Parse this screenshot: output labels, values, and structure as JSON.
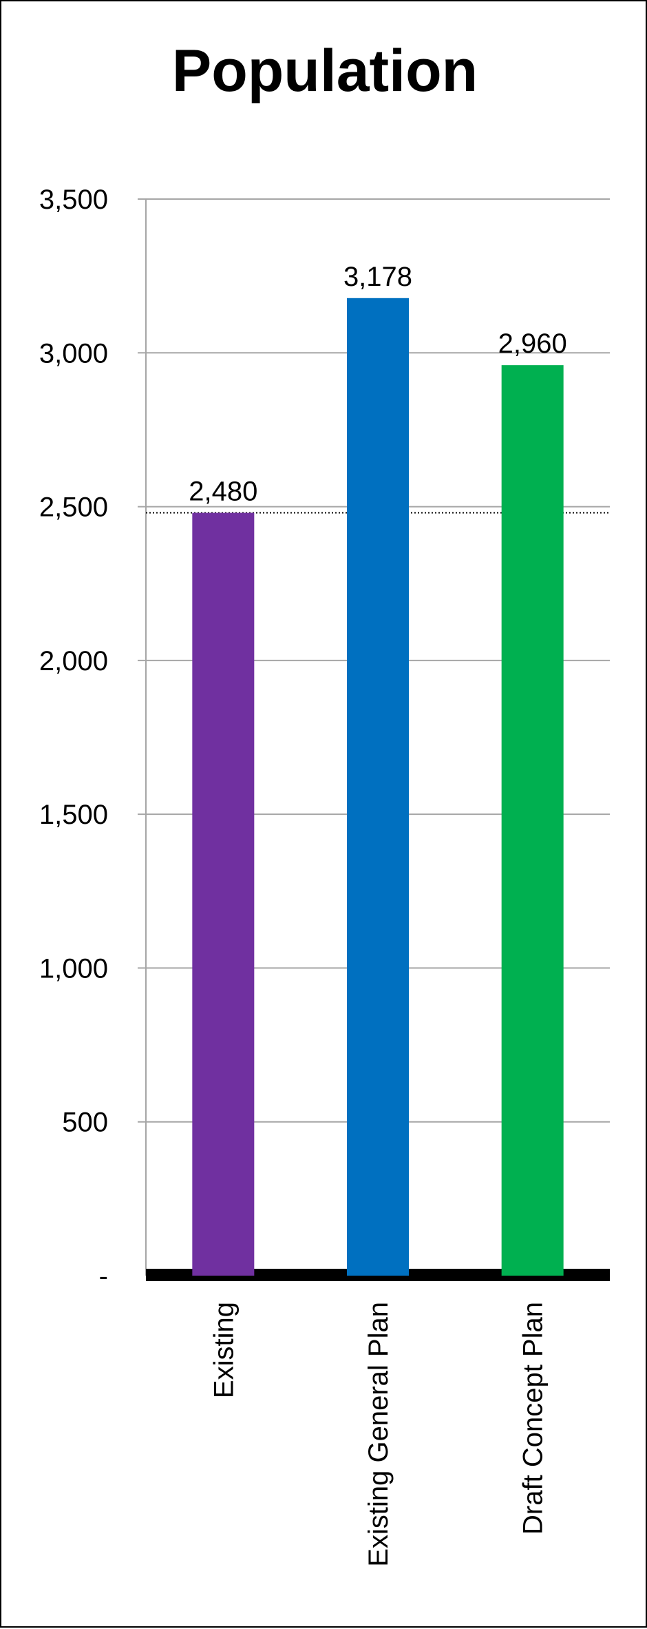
{
  "chart_data": {
    "type": "bar",
    "title": "Population",
    "xlabel": "",
    "ylabel": "",
    "categories": [
      "Existing",
      "Existing General Plan",
      "Draft Concept Plan"
    ],
    "values": [
      2480,
      3178,
      2960
    ],
    "data_labels": [
      "2,480",
      "3,178",
      "2,960"
    ],
    "bar_colors": [
      "#7030A0",
      "#0070C0",
      "#00B050"
    ],
    "ylim": [
      0,
      3500
    ],
    "y_ticks": [
      0,
      500,
      1000,
      1500,
      2000,
      2500,
      3000,
      3500
    ],
    "y_tick_labels": [
      "-",
      "500",
      "1,000",
      "1,500",
      "2,000",
      "2,500",
      "3,000",
      "3,500"
    ],
    "grid": true,
    "reference_line": {
      "value": 2480,
      "style": "dotted"
    },
    "legend": "none"
  }
}
